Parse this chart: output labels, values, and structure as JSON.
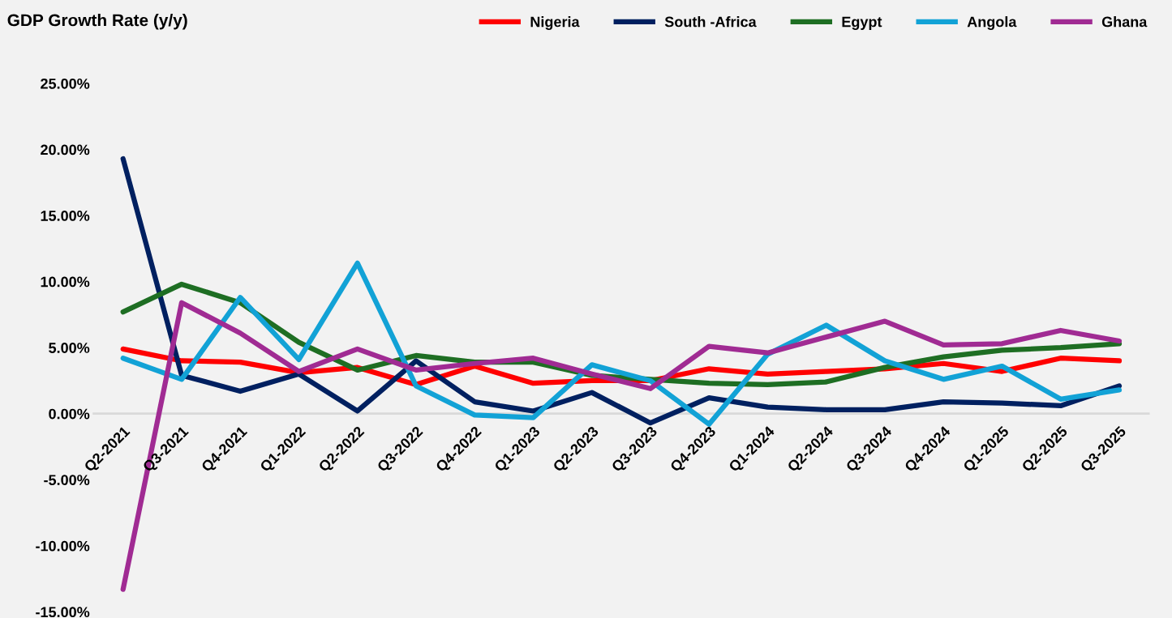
{
  "chart_data": {
    "type": "line",
    "title": "GDP Growth Rate (y/y)",
    "categories": [
      "Q2-2021",
      "Q3-2021",
      "Q4-2021",
      "Q1-2022",
      "Q2-2022",
      "Q3-2022",
      "Q4-2022",
      "Q1-2023",
      "Q2-2023",
      "Q3-2023",
      "Q4-2023",
      "Q1-2024",
      "Q2-2024",
      "Q3-2024",
      "Q4-2024",
      "Q1-2025",
      "Q2-2025",
      "Q3-2025"
    ],
    "series": [
      {
        "name": "Nigeria",
        "color": "#ff0000",
        "values": [
          4.9,
          4.0,
          3.9,
          3.1,
          3.5,
          2.2,
          3.6,
          2.3,
          2.5,
          2.5,
          3.4,
          3.0,
          3.2,
          3.4,
          3.8,
          3.2,
          4.2,
          4.0
        ]
      },
      {
        "name": "South -Africa",
        "color": "#002060",
        "values": [
          19.3,
          2.9,
          1.7,
          3.0,
          0.2,
          4.0,
          0.9,
          0.2,
          1.6,
          -0.7,
          1.2,
          0.5,
          0.3,
          0.3,
          0.9,
          0.8,
          0.6,
          2.1
        ]
      },
      {
        "name": "Egypt",
        "color": "#1e6e23",
        "values": [
          7.7,
          9.8,
          8.4,
          5.4,
          3.3,
          4.4,
          3.9,
          3.9,
          2.9,
          2.6,
          2.3,
          2.2,
          2.4,
          3.5,
          4.3,
          4.8,
          5.0,
          5.3
        ]
      },
      {
        "name": "Angola",
        "color": "#12a2d6",
        "values": [
          4.2,
          2.6,
          8.8,
          4.1,
          11.4,
          2.1,
          -0.1,
          -0.3,
          3.7,
          2.5,
          -0.8,
          4.5,
          6.7,
          4.0,
          2.6,
          3.6,
          1.1,
          1.8
        ]
      },
      {
        "name": "Ghana",
        "color": "#a02b93",
        "values": [
          -13.3,
          8.4,
          6.1,
          3.2,
          4.9,
          3.3,
          3.8,
          4.2,
          3.0,
          1.9,
          5.1,
          4.6,
          5.8,
          7.0,
          5.2,
          5.3,
          6.3,
          5.5
        ]
      }
    ],
    "ylim": [
      -15,
      25
    ],
    "yticks": [
      {
        "value": -15,
        "label": "-15.00%"
      },
      {
        "value": -10,
        "label": "-10.00%"
      },
      {
        "value": -5,
        "label": "-5.00%"
      },
      {
        "value": 0,
        "label": "0.00%"
      },
      {
        "value": 5,
        "label": "5.00%"
      },
      {
        "value": 10,
        "label": "10.00%"
      },
      {
        "value": 15,
        "label": "15.00%"
      },
      {
        "value": 20,
        "label": "20.00%"
      },
      {
        "value": 25,
        "label": "25.00%"
      }
    ],
    "grid": false,
    "legend": "top right",
    "marker": "none",
    "line_style": "solid"
  }
}
